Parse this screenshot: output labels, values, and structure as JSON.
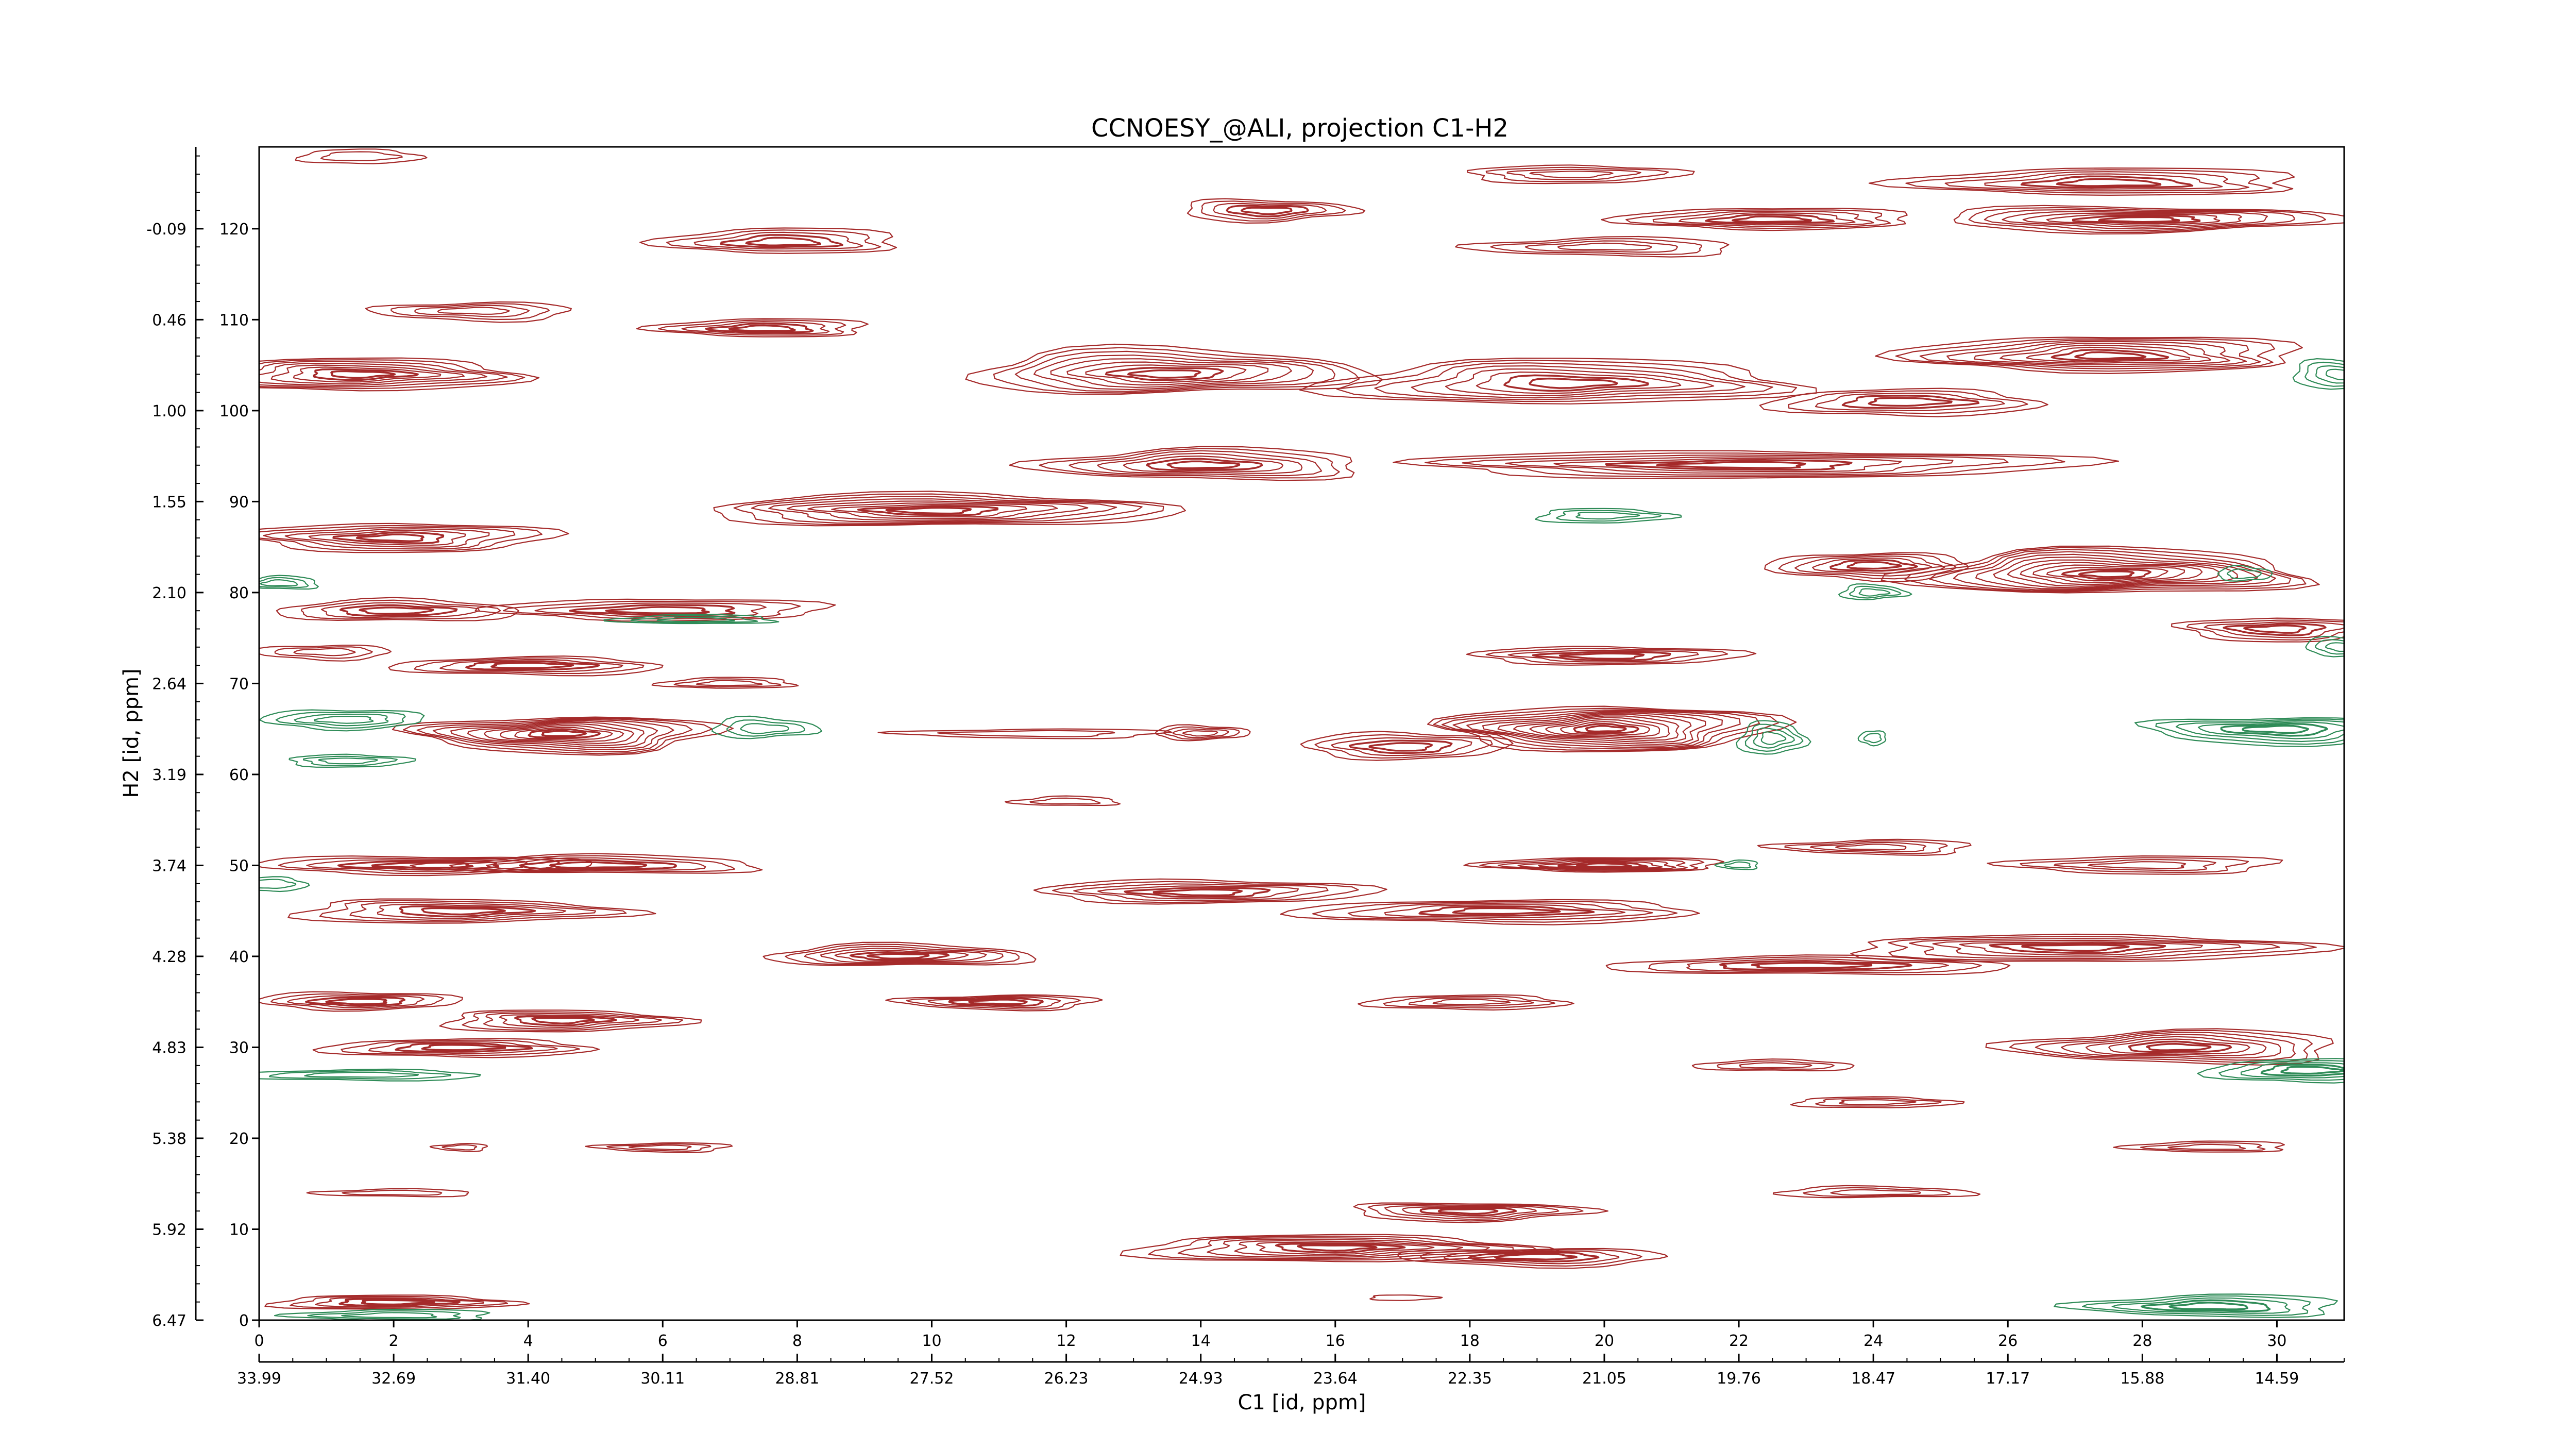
{
  "chart_data": {
    "type": "contour",
    "title": "CCNOESY_@ALI, projection C1-H2",
    "xlabel": "C1 [id, ppm]",
    "ylabel": "H2 [id, ppm]",
    "x_index_range": [
      0,
      31
    ],
    "x_index_ticks": [
      "0",
      "2",
      "4",
      "6",
      "8",
      "10",
      "12",
      "14",
      "16",
      "18",
      "20",
      "22",
      "24",
      "26",
      "28",
      "30"
    ],
    "x_ppm_ticks": [
      "33.99",
      "32.69",
      "31.40",
      "30.11",
      "28.81",
      "27.52",
      "26.23",
      "24.93",
      "23.64",
      "22.35",
      "21.05",
      "19.76",
      "18.47",
      "17.17",
      "15.88",
      "14.59"
    ],
    "y_index_range": [
      0,
      129
    ],
    "y_index_ticks": [
      "0",
      "10",
      "20",
      "30",
      "40",
      "50",
      "60",
      "70",
      "80",
      "90",
      "100",
      "110",
      "120"
    ],
    "y_ppm_ticks": [
      "6.47",
      "5.92",
      "5.38",
      "4.83",
      "4.28",
      "3.74",
      "3.19",
      "2.64",
      "2.10",
      "1.55",
      "1.00",
      "0.46",
      "-0.09"
    ],
    "series": [
      {
        "sign": "positive",
        "color": "#a52a2a",
        "peaks": [
          {
            "x": 1.5,
            "y": 128,
            "sx": 0.9,
            "sy": 0.8,
            "levels": 2
          },
          {
            "x": 19.5,
            "y": 126,
            "sx": 1.6,
            "sy": 1.0,
            "levels": 4
          },
          {
            "x": 27.5,
            "y": 125,
            "sx": 3.0,
            "sy": 1.5,
            "levels": 6
          },
          {
            "x": 15.0,
            "y": 122,
            "sx": 1.3,
            "sy": 1.2,
            "levels": 5
          },
          {
            "x": 7.8,
            "y": 118.5,
            "sx": 1.8,
            "sy": 1.4,
            "levels": 5
          },
          {
            "x": 22.5,
            "y": 121,
            "sx": 2.2,
            "sy": 1.2,
            "levels": 6
          },
          {
            "x": 20.0,
            "y": 118,
            "sx": 2.0,
            "sy": 1.0,
            "levels": 4
          },
          {
            "x": 28.0,
            "y": 121,
            "sx": 3.0,
            "sy": 1.4,
            "levels": 8
          },
          {
            "x": 3.2,
            "y": 111,
            "sx": 1.5,
            "sy": 1.0,
            "levels": 4
          },
          {
            "x": 7.5,
            "y": 109,
            "sx": 1.6,
            "sy": 1.0,
            "levels": 5
          },
          {
            "x": 1.5,
            "y": 104,
            "sx": 2.5,
            "sy": 1.8,
            "levels": 8
          },
          {
            "x": 13.5,
            "y": 104,
            "sx": 3.0,
            "sy": 2.5,
            "levels": 9
          },
          {
            "x": 19.5,
            "y": 103,
            "sx": 3.5,
            "sy": 2.5,
            "levels": 8
          },
          {
            "x": 27.5,
            "y": 106,
            "sx": 3.0,
            "sy": 2.0,
            "levels": 9
          },
          {
            "x": 24.5,
            "y": 101,
            "sx": 2.0,
            "sy": 1.5,
            "levels": 5
          },
          {
            "x": 22.0,
            "y": 94,
            "sx": 5.0,
            "sy": 1.5,
            "levels": 7
          },
          {
            "x": 14.0,
            "y": 94,
            "sx": 2.5,
            "sy": 1.7,
            "levels": 7
          },
          {
            "x": 10.0,
            "y": 89,
            "sx": 3.5,
            "sy": 1.8,
            "levels": 9
          },
          {
            "x": 2.0,
            "y": 86,
            "sx": 2.3,
            "sy": 1.6,
            "levels": 7
          },
          {
            "x": 27.5,
            "y": 82,
            "sx": 3.0,
            "sy": 2.5,
            "levels": 12
          },
          {
            "x": 24.0,
            "y": 83,
            "sx": 1.5,
            "sy": 1.5,
            "levels": 6
          },
          {
            "x": 2.0,
            "y": 78,
            "sx": 1.8,
            "sy": 1.2,
            "levels": 5
          },
          {
            "x": 6.0,
            "y": 78,
            "sx": 2.5,
            "sy": 1.2,
            "levels": 5
          },
          {
            "x": 30.0,
            "y": 76,
            "sx": 1.5,
            "sy": 1.3,
            "levels": 5
          },
          {
            "x": 4.0,
            "y": 72,
            "sx": 2.0,
            "sy": 1.0,
            "levels": 5
          },
          {
            "x": 20.0,
            "y": 73,
            "sx": 2.0,
            "sy": 1.0,
            "levels": 5
          },
          {
            "x": 1.0,
            "y": 73.5,
            "sx": 1.0,
            "sy": 0.8,
            "levels": 3
          },
          {
            "x": 4.5,
            "y": 64.5,
            "sx": 2.3,
            "sy": 2.0,
            "levels": 11
          },
          {
            "x": 20.0,
            "y": 65,
            "sx": 2.5,
            "sy": 2.5,
            "levels": 13
          },
          {
            "x": 17.0,
            "y": 63,
            "sx": 1.5,
            "sy": 1.5,
            "levels": 5
          },
          {
            "x": 14.0,
            "y": 64.5,
            "sx": 0.7,
            "sy": 0.8,
            "levels": 4
          },
          {
            "x": 11.5,
            "y": 64.5,
            "sx": 2.0,
            "sy": 0.5,
            "levels": 2
          },
          {
            "x": 12.0,
            "y": 57,
            "sx": 0.8,
            "sy": 0.5,
            "levels": 2
          },
          {
            "x": 7.0,
            "y": 70,
            "sx": 1.0,
            "sy": 0.6,
            "levels": 3
          },
          {
            "x": 20.0,
            "y": 50,
            "sx": 1.8,
            "sy": 0.8,
            "levels": 7
          },
          {
            "x": 2.5,
            "y": 50,
            "sx": 2.5,
            "sy": 1.0,
            "levels": 5
          },
          {
            "x": 5.0,
            "y": 50,
            "sx": 2.5,
            "sy": 1.0,
            "levels": 5
          },
          {
            "x": 24.0,
            "y": 52,
            "sx": 1.5,
            "sy": 0.8,
            "levels": 4
          },
          {
            "x": 28.0,
            "y": 50,
            "sx": 2.0,
            "sy": 1.0,
            "levels": 4
          },
          {
            "x": 14.0,
            "y": 47,
            "sx": 2.5,
            "sy": 1.3,
            "levels": 6
          },
          {
            "x": 18.5,
            "y": 45,
            "sx": 3.0,
            "sy": 1.3,
            "levels": 6
          },
          {
            "x": 3.0,
            "y": 45,
            "sx": 2.5,
            "sy": 1.3,
            "levels": 6
          },
          {
            "x": 9.5,
            "y": 40,
            "sx": 2.0,
            "sy": 1.2,
            "levels": 7
          },
          {
            "x": 27.0,
            "y": 41,
            "sx": 3.5,
            "sy": 1.5,
            "levels": 7
          },
          {
            "x": 23.0,
            "y": 39,
            "sx": 3.0,
            "sy": 1.0,
            "levels": 5
          },
          {
            "x": 11.0,
            "y": 35,
            "sx": 1.5,
            "sy": 0.8,
            "levels": 5
          },
          {
            "x": 1.5,
            "y": 35,
            "sx": 1.5,
            "sy": 1.0,
            "levels": 5
          },
          {
            "x": 4.5,
            "y": 33,
            "sx": 1.8,
            "sy": 1.2,
            "levels": 6
          },
          {
            "x": 18.0,
            "y": 35,
            "sx": 1.5,
            "sy": 0.8,
            "levels": 4
          },
          {
            "x": 3.0,
            "y": 30,
            "sx": 2.0,
            "sy": 1.0,
            "levels": 5
          },
          {
            "x": 28.5,
            "y": 30,
            "sx": 2.5,
            "sy": 1.8,
            "levels": 8
          },
          {
            "x": 22.5,
            "y": 28,
            "sx": 1.2,
            "sy": 0.6,
            "levels": 3
          },
          {
            "x": 24.0,
            "y": 24,
            "sx": 1.2,
            "sy": 0.6,
            "levels": 3
          },
          {
            "x": 6.0,
            "y": 19,
            "sx": 1.0,
            "sy": 0.5,
            "levels": 3
          },
          {
            "x": 29.0,
            "y": 19,
            "sx": 1.2,
            "sy": 0.6,
            "levels": 3
          },
          {
            "x": 3.0,
            "y": 19,
            "sx": 0.4,
            "sy": 0.4,
            "levels": 2
          },
          {
            "x": 2.0,
            "y": 14,
            "sx": 1.2,
            "sy": 0.4,
            "levels": 2
          },
          {
            "x": 18.0,
            "y": 12,
            "sx": 1.8,
            "sy": 1.0,
            "levels": 6
          },
          {
            "x": 24.0,
            "y": 14,
            "sx": 1.5,
            "sy": 0.6,
            "levels": 3
          },
          {
            "x": 16.0,
            "y": 8,
            "sx": 3.0,
            "sy": 1.5,
            "levels": 8
          },
          {
            "x": 19.0,
            "y": 7,
            "sx": 2.0,
            "sy": 1.0,
            "levels": 5
          },
          {
            "x": 2.0,
            "y": 2,
            "sx": 1.8,
            "sy": 0.8,
            "levels": 5
          },
          {
            "x": 17.0,
            "y": 2.5,
            "sx": 0.5,
            "sy": 0.3,
            "levels": 1
          }
        ]
      },
      {
        "sign": "negative",
        "color": "#2e8b57",
        "peaks": [
          {
            "x": 1.3,
            "y": 66,
            "sx": 1.2,
            "sy": 1.1,
            "levels": 4
          },
          {
            "x": 1.3,
            "y": 61.5,
            "sx": 0.9,
            "sy": 0.7,
            "levels": 3
          },
          {
            "x": 7.5,
            "y": 65,
            "sx": 0.8,
            "sy": 1.1,
            "levels": 3
          },
          {
            "x": 22.5,
            "y": 64,
            "sx": 0.5,
            "sy": 1.8,
            "levels": 4
          },
          {
            "x": 24.0,
            "y": 64,
            "sx": 0.2,
            "sy": 0.8,
            "levels": 2
          },
          {
            "x": 30.0,
            "y": 65,
            "sx": 2.0,
            "sy": 1.5,
            "levels": 6
          },
          {
            "x": 20.0,
            "y": 88.5,
            "sx": 1.0,
            "sy": 0.8,
            "levels": 3
          },
          {
            "x": 24.0,
            "y": 80,
            "sx": 0.5,
            "sy": 0.8,
            "levels": 3
          },
          {
            "x": 1.5,
            "y": 27,
            "sx": 1.8,
            "sy": 0.6,
            "levels": 3
          },
          {
            "x": 30.5,
            "y": 27.5,
            "sx": 1.5,
            "sy": 1.3,
            "levels": 5
          },
          {
            "x": 0.2,
            "y": 48,
            "sx": 0.5,
            "sy": 0.8,
            "levels": 2
          },
          {
            "x": 22.0,
            "y": 50,
            "sx": 0.3,
            "sy": 0.5,
            "levels": 2
          },
          {
            "x": 31.0,
            "y": 104,
            "sx": 0.8,
            "sy": 1.5,
            "levels": 4
          },
          {
            "x": 0.3,
            "y": 81,
            "sx": 0.6,
            "sy": 0.7,
            "levels": 3
          },
          {
            "x": 29.5,
            "y": 82,
            "sx": 0.4,
            "sy": 0.8,
            "levels": 2
          },
          {
            "x": 6.5,
            "y": 77,
            "sx": 1.2,
            "sy": 0.5,
            "levels": 3
          },
          {
            "x": 31.0,
            "y": 74,
            "sx": 0.6,
            "sy": 1.0,
            "levels": 3
          },
          {
            "x": 29.0,
            "y": 1.5,
            "sx": 2.0,
            "sy": 1.2,
            "levels": 5
          },
          {
            "x": 2.0,
            "y": 0.5,
            "sx": 1.5,
            "sy": 0.6,
            "levels": 3
          }
        ]
      }
    ]
  }
}
